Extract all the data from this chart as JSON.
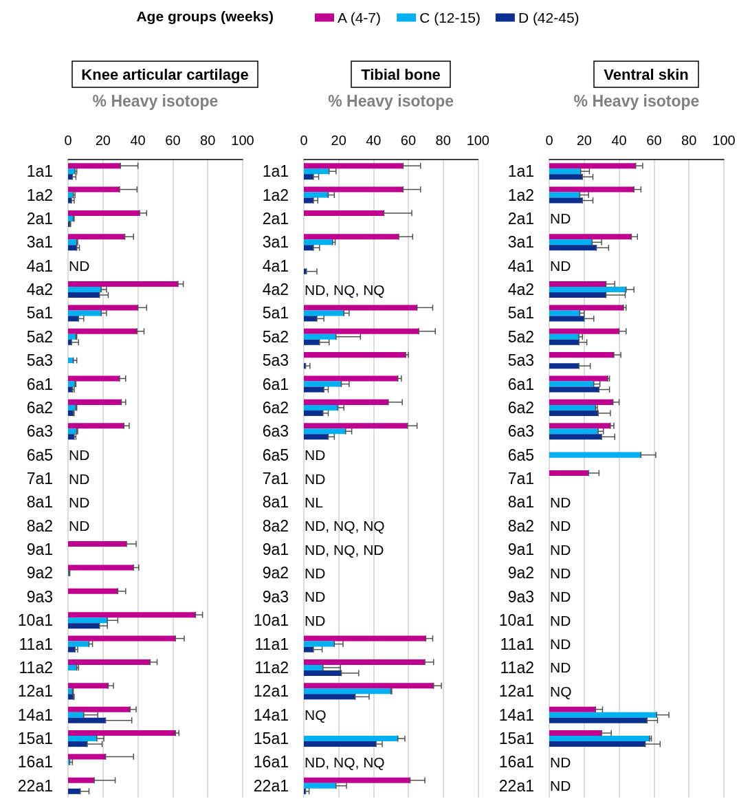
{
  "chart_data": [
    {
      "type": "bar",
      "orientation": "horizontal",
      "title": "Knee articular cartilage",
      "xlabel": "% Heavy isotope",
      "legend_title": "Age groups (weeks)",
      "legend": "top",
      "grid": "x",
      "xlim": [
        0,
        100
      ],
      "xticks": [
        0,
        20,
        40,
        60,
        80,
        100
      ],
      "categories": [
        "1a1",
        "1a2",
        "2a1",
        "3a1",
        "4a1",
        "4a2",
        "5a1",
        "5a2",
        "5a3",
        "6a1",
        "6a2",
        "6a3",
        "6a5",
        "7a1",
        "8a1",
        "8a2",
        "9a1",
        "9a2",
        "9a3",
        "10a1",
        "11a1",
        "11a2",
        "12a1",
        "14a1",
        "15a1",
        "16a1",
        "22a1"
      ],
      "series": [
        {
          "name": "A (4-7)",
          "color": "#c0008f",
          "values": [
            30,
            29.5,
            41,
            32.5,
            null,
            63,
            40,
            39.5,
            null,
            29.5,
            30.5,
            32,
            null,
            null,
            null,
            null,
            33.5,
            37.5,
            28.5,
            73,
            61.5,
            47,
            23,
            35.5,
            61.5,
            21.5,
            15
          ],
          "errors": [
            [
              30,
              40
            ],
            [
              29.5,
              39.5
            ],
            [
              41,
              45
            ],
            [
              32.5,
              37.5
            ],
            null,
            [
              63,
              66
            ],
            [
              40,
              45
            ],
            [
              39.5,
              43.5
            ],
            null,
            [
              29.5,
              33
            ],
            [
              30.5,
              33
            ],
            [
              32,
              35
            ],
            null,
            null,
            null,
            null,
            [
              33.5,
              39
            ],
            [
              37.5,
              40.5
            ],
            [
              28.5,
              33
            ],
            [
              73,
              77
            ],
            [
              61.5,
              66.5
            ],
            [
              47,
              51
            ],
            [
              23,
              26
            ],
            [
              35.5,
              39
            ],
            [
              61.5,
              63.5
            ],
            [
              21.5,
              37.5
            ],
            [
              15,
              27
            ]
          ],
          "value_labels": [
            null,
            null,
            null,
            null,
            "ND",
            null,
            null,
            null,
            null,
            null,
            null,
            null,
            "ND",
            "ND",
            "ND",
            "ND",
            null,
            null,
            null,
            null,
            null,
            null,
            null,
            null,
            null,
            null,
            null
          ]
        },
        {
          "name": "C (12-15)",
          "color": "#00b0f0",
          "values": [
            4,
            3,
            3,
            5,
            null,
            19,
            19,
            4.5,
            3,
            4,
            4.5,
            5,
            null,
            null,
            null,
            null,
            null,
            0.5,
            null,
            22.5,
            12,
            5,
            2.5,
            9,
            16.5,
            1,
            null
          ],
          "errors": [
            [
              4,
              5
            ],
            [
              3,
              4
            ],
            [
              3,
              3.5
            ],
            [
              5,
              5.5
            ],
            null,
            [
              19,
              22
            ],
            [
              19,
              22
            ],
            [
              4.5,
              5
            ],
            [
              3,
              5
            ],
            [
              4,
              4.5
            ],
            [
              4.5,
              5
            ],
            [
              5,
              5.5
            ],
            null,
            null,
            null,
            null,
            null,
            [
              0.5,
              1
            ],
            null,
            [
              22.5,
              28.5
            ],
            [
              12,
              14
            ],
            [
              5,
              6
            ],
            [
              2.5,
              3
            ],
            [
              9,
              17
            ],
            [
              16.5,
              20.5
            ],
            [
              1,
              2.5
            ],
            null
          ]
        },
        {
          "name": "D (42-45)",
          "color": "#0b2f8f",
          "values": [
            2.5,
            2,
            1,
            5,
            null,
            18,
            6,
            2,
            null,
            2.5,
            3,
            3.5,
            null,
            null,
            null,
            null,
            null,
            null,
            null,
            18,
            4,
            null,
            3,
            21.5,
            11,
            null,
            7
          ],
          "errors": [
            [
              2.5,
              4.5
            ],
            [
              2,
              3.5
            ],
            [
              1,
              1.5
            ],
            [
              5,
              6.5
            ],
            null,
            [
              18,
              23
            ],
            [
              6,
              9
            ],
            [
              2,
              6
            ],
            null,
            [
              2.5,
              3.5
            ],
            [
              3,
              3.5
            ],
            [
              3.5,
              4.5
            ],
            null,
            null,
            null,
            null,
            null,
            null,
            null,
            [
              18,
              22.5
            ],
            [
              4,
              5.5
            ],
            null,
            [
              3,
              3.5
            ],
            [
              21.5,
              36.5
            ],
            [
              11,
              19.5
            ],
            null,
            [
              7,
              12
            ]
          ]
        }
      ]
    },
    {
      "type": "bar",
      "orientation": "horizontal",
      "title": "Tibial bone",
      "xlabel": "% Heavy isotope",
      "grid": "x",
      "xlim": [
        0,
        100
      ],
      "xticks": [
        0,
        20,
        40,
        60,
        80,
        100
      ],
      "categories": [
        "1a1",
        "1a2",
        "2a1",
        "3a1",
        "4a1",
        "4a2",
        "5a1",
        "5a2",
        "5a3",
        "6a1",
        "6a2",
        "6a3",
        "6a5",
        "7a1",
        "8a1",
        "8a2",
        "9a1",
        "9a2",
        "9a3",
        "10a1",
        "11a1",
        "11a2",
        "12a1",
        "14a1",
        "15a1",
        "16a1",
        "22a1"
      ],
      "series": [
        {
          "color": "#c0008f",
          "values": [
            57,
            57,
            46,
            54.5,
            null,
            null,
            65,
            66,
            58.5,
            54,
            48.5,
            59.5,
            null,
            null,
            null,
            null,
            null,
            null,
            null,
            null,
            70,
            69.5,
            74.5,
            null,
            null,
            null,
            61
          ],
          "errors": [
            [
              57,
              67
            ],
            [
              57,
              67
            ],
            [
              46,
              62
            ],
            [
              54.5,
              62.5
            ],
            null,
            null,
            [
              65,
              74
            ],
            [
              66,
              75.5
            ],
            [
              58.5,
              60
            ],
            [
              54,
              56
            ],
            [
              48.5,
              56.5
            ],
            [
              59.5,
              65
            ],
            null,
            null,
            null,
            null,
            null,
            null,
            null,
            null,
            [
              70,
              74
            ],
            [
              69.5,
              74.5
            ],
            [
              74.5,
              79
            ],
            null,
            null,
            null,
            [
              61,
              69.5
            ]
          ],
          "value_labels": [
            null,
            null,
            null,
            null,
            null,
            "ND, NQ, NQ",
            null,
            null,
            null,
            null,
            null,
            null,
            "ND",
            "ND",
            "NL",
            "ND, NQ, NQ",
            "ND, NQ, ND",
            "ND",
            "ND",
            "ND",
            null,
            null,
            null,
            "NQ",
            null,
            "ND, NQ, NQ",
            null
          ]
        },
        {
          "color": "#00b0f0",
          "values": [
            14.5,
            14,
            null,
            16.5,
            null,
            null,
            23,
            18.5,
            null,
            21.5,
            19.5,
            24,
            null,
            null,
            null,
            null,
            null,
            null,
            null,
            null,
            17.5,
            11,
            50,
            null,
            54,
            null,
            18.5
          ],
          "errors": [
            [
              14.5,
              18.5
            ],
            [
              14,
              17.5
            ],
            null,
            [
              16.5,
              18
            ],
            null,
            null,
            [
              23,
              26
            ],
            [
              18.5,
              32.5
            ],
            null,
            [
              21.5,
              26
            ],
            [
              19.5,
              23
            ],
            [
              24,
              27.5
            ],
            null,
            null,
            null,
            null,
            null,
            null,
            null,
            null,
            [
              17.5,
              22.5
            ],
            [
              11,
              21
            ],
            [
              50,
              50.5
            ],
            null,
            [
              54,
              58
            ],
            null,
            [
              18.5,
              24.5
            ]
          ]
        },
        {
          "color": "#0b2f8f",
          "values": [
            5.5,
            5.5,
            null,
            5.5,
            1.5,
            null,
            7.5,
            9,
            1,
            11.5,
            11,
            14,
            null,
            null,
            null,
            null,
            null,
            null,
            null,
            null,
            5.5,
            21.5,
            29.5,
            null,
            41.5,
            null,
            1
          ],
          "errors": [
            [
              5.5,
              8.5
            ],
            [
              5.5,
              8
            ],
            null,
            [
              5.5,
              9
            ],
            [
              1.5,
              7.5
            ],
            null,
            [
              7.5,
              11.5
            ],
            [
              9,
              14.5
            ],
            [
              1,
              3.5
            ],
            [
              11.5,
              14
            ],
            [
              11,
              14
            ],
            [
              14,
              17.5
            ],
            null,
            null,
            null,
            null,
            null,
            null,
            null,
            null,
            [
              5.5,
              10.5
            ],
            [
              21.5,
              31.5
            ],
            [
              29.5,
              37.5
            ],
            null,
            [
              41.5,
              45
            ],
            null,
            [
              1,
              3
            ]
          ]
        }
      ]
    },
    {
      "type": "bar",
      "orientation": "horizontal",
      "title": "Ventral skin",
      "xlabel": "% Heavy isotope",
      "grid": "x",
      "xlim": [
        0,
        100
      ],
      "xticks": [
        0,
        20,
        40,
        60,
        80,
        100
      ],
      "categories": [
        "1a1",
        "1a2",
        "2a1",
        "3a1",
        "4a1",
        "4a2",
        "5a1",
        "5a2",
        "5a3",
        "6a1",
        "6a2",
        "6a3",
        "6a5",
        "7a1",
        "8a1",
        "8a2",
        "9a1",
        "9a2",
        "9a3",
        "10a1",
        "11a1",
        "11a2",
        "12a1",
        "14a1",
        "15a1",
        "16a1",
        "22a1"
      ],
      "series": [
        {
          "color": "#c0008f",
          "values": [
            49.5,
            48.5,
            null,
            47,
            null,
            32.5,
            42.5,
            40,
            37,
            33.5,
            36.5,
            35,
            null,
            22.5,
            null,
            null,
            null,
            null,
            null,
            null,
            null,
            null,
            null,
            26.5,
            30,
            null,
            null
          ],
          "errors": [
            [
              49.5,
              53.5
            ],
            [
              48.5,
              52.5
            ],
            null,
            [
              47,
              50.5
            ],
            null,
            [
              32.5,
              37.5
            ],
            [
              42.5,
              44
            ],
            [
              40,
              44
            ],
            [
              37,
              41
            ],
            [
              33.5,
              34.5
            ],
            [
              36.5,
              40
            ],
            [
              35,
              37
            ],
            null,
            [
              22.5,
              28.5
            ],
            null,
            null,
            null,
            null,
            null,
            null,
            null,
            null,
            null,
            [
              26.5,
              30.5
            ],
            [
              30,
              35.5
            ],
            null,
            null
          ],
          "value_labels": [
            null,
            null,
            "ND",
            null,
            "ND",
            null,
            null,
            null,
            null,
            null,
            null,
            null,
            null,
            null,
            "ND",
            "ND",
            "ND",
            "ND",
            "ND",
            "ND",
            "ND",
            "ND",
            "NQ",
            null,
            null,
            "ND",
            "ND"
          ]
        },
        {
          "color": "#00b0f0",
          "values": [
            18,
            17.5,
            null,
            24.5,
            null,
            44,
            17.5,
            17,
            null,
            25.5,
            26.5,
            28,
            52.5,
            null,
            null,
            null,
            null,
            null,
            null,
            null,
            null,
            null,
            null,
            61.5,
            57.5,
            null,
            null
          ],
          "errors": [
            [
              18,
              23
            ],
            [
              17.5,
              22.5
            ],
            null,
            [
              24.5,
              30
            ],
            null,
            [
              44,
              48.5
            ],
            [
              17.5,
              20
            ],
            [
              17,
              19
            ],
            null,
            [
              25.5,
              29
            ],
            [
              26.5,
              27.5
            ],
            [
              28,
              31
            ],
            [
              52.5,
              61
            ],
            null,
            null,
            null,
            null,
            null,
            null,
            null,
            null,
            null,
            null,
            [
              61.5,
              68.5
            ],
            [
              57.5,
              58.5
            ],
            null,
            null
          ]
        },
        {
          "color": "#0b2f8f",
          "values": [
            19,
            19,
            null,
            27,
            null,
            32.5,
            20,
            17,
            17,
            28.5,
            28,
            30,
            null,
            null,
            null,
            null,
            null,
            null,
            null,
            null,
            null,
            null,
            null,
            56,
            55,
            null,
            null
          ],
          "errors": [
            [
              19,
              25
            ],
            [
              19,
              25
            ],
            null,
            [
              27,
              34
            ],
            null,
            [
              32.5,
              43.5
            ],
            [
              20,
              25.5
            ],
            [
              17,
              21.5
            ],
            [
              17,
              23.5
            ],
            [
              28.5,
              34.5
            ],
            [
              28,
              35
            ],
            [
              30,
              37.5
            ],
            null,
            null,
            null,
            null,
            null,
            null,
            null,
            null,
            null,
            null,
            null,
            [
              56,
              62
            ],
            [
              55,
              63.5
            ],
            null,
            null
          ]
        }
      ]
    }
  ]
}
